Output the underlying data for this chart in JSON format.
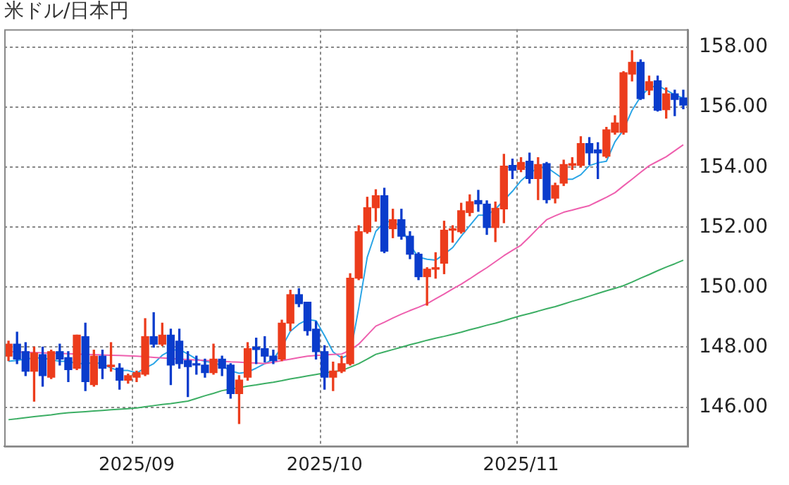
{
  "chart_data": {
    "type": "candlestick",
    "title": "米ドル/日本円",
    "categories": [
      null,
      null,
      null,
      null,
      null,
      null,
      null,
      null,
      null,
      null,
      null,
      null,
      null,
      null,
      null,
      "2025/09",
      null,
      null,
      null,
      null,
      null,
      null,
      null,
      null,
      null,
      null,
      null,
      null,
      null,
      null,
      null,
      null,
      null,
      null,
      null,
      null,
      null,
      "2025/10",
      null,
      null,
      null,
      null,
      null,
      null,
      null,
      null,
      null,
      null,
      null,
      null,
      null,
      null,
      null,
      null,
      null,
      null,
      null,
      null,
      null,
      null,
      "2025/11",
      null,
      null,
      null,
      null,
      null,
      null,
      null,
      null,
      null,
      null,
      null,
      null,
      null,
      null,
      null,
      null,
      null,
      null,
      null
    ],
    "series": [
      {
        "type": "line",
        "color": "#3cae64",
        "values": [
          145.58,
          145.61,
          145.65,
          145.68,
          145.71,
          145.74,
          145.78,
          145.81,
          145.83,
          145.85,
          145.87,
          145.89,
          145.91,
          145.93,
          145.95,
          145.97,
          146.01,
          146.05,
          146.09,
          146.12,
          146.16,
          146.2,
          146.29,
          146.38,
          146.46,
          146.55,
          146.6,
          146.65,
          146.7,
          146.74,
          146.79,
          146.83,
          146.88,
          146.94,
          146.99,
          147.04,
          147.09,
          147.14,
          147.18,
          147.22,
          147.33,
          147.45,
          147.6,
          147.76,
          147.84,
          147.92,
          148.0,
          148.08,
          148.15,
          148.23,
          148.3,
          148.36,
          148.43,
          148.5,
          148.58,
          148.65,
          148.73,
          148.8,
          148.88,
          148.97,
          149.05,
          149.12,
          149.2,
          149.28,
          149.35,
          149.44,
          149.53,
          149.61,
          149.7,
          149.79,
          149.88,
          149.96,
          150.05,
          150.17,
          150.3,
          150.42,
          150.55,
          150.67,
          150.78,
          150.9
        ]
      },
      {
        "type": "line",
        "color": "#ee5fae",
        "values": [
          147.85,
          147.84,
          147.83,
          147.82,
          147.81,
          147.8,
          147.79,
          147.78,
          147.77,
          147.76,
          147.75,
          147.74,
          147.73,
          147.72,
          147.71,
          147.7,
          147.68,
          147.66,
          147.64,
          147.62,
          147.6,
          147.59,
          147.57,
          147.56,
          147.54,
          147.53,
          147.51,
          147.5,
          147.48,
          147.47,
          147.45,
          147.5,
          147.55,
          147.6,
          147.65,
          147.7,
          147.72,
          147.74,
          147.76,
          147.77,
          147.9,
          148.1,
          148.4,
          148.7,
          148.83,
          148.97,
          149.1,
          149.22,
          149.33,
          149.45,
          149.61,
          149.77,
          149.94,
          150.1,
          150.28,
          150.47,
          150.65,
          150.85,
          151.05,
          151.23,
          151.4,
          151.68,
          151.97,
          152.25,
          152.38,
          152.5,
          152.57,
          152.65,
          152.72,
          152.86,
          153.0,
          153.15,
          153.38,
          153.6,
          153.83,
          154.05,
          154.2,
          154.35,
          154.55,
          154.75
        ]
      },
      {
        "type": "line",
        "color": "#2aa5e6",
        "values": [
          147.53,
          147.56,
          147.6,
          147.64,
          147.64,
          147.58,
          147.53,
          147.53,
          147.45,
          147.45,
          147.48,
          147.45,
          147.3,
          147.22,
          147.22,
          147.14,
          147.3,
          147.45,
          147.73,
          147.89,
          147.92,
          147.77,
          147.6,
          147.53,
          147.48,
          147.38,
          147.21,
          147.13,
          147.17,
          147.3,
          147.45,
          147.6,
          147.99,
          148.53,
          148.77,
          148.92,
          148.88,
          148.38,
          147.84,
          147.64,
          147.76,
          149.3,
          151.0,
          151.86,
          152.17,
          152.2,
          152.0,
          151.4,
          151.0,
          150.93,
          150.9,
          151.1,
          151.32,
          151.7,
          152.05,
          152.4,
          152.4,
          152.6,
          152.9,
          153.2,
          153.55,
          153.8,
          153.98,
          154.0,
          153.8,
          153.6,
          153.6,
          153.75,
          154.05,
          154.15,
          154.2,
          154.85,
          155.25,
          155.9,
          156.35,
          156.65,
          156.73,
          156.57,
          156.42,
          156.3
        ]
      },
      {
        "type": "candlestick",
        "colors": [
          "#ec3c1c",
          "#0a3ccc",
          "#0a3ccc",
          "#ec3c1c",
          "#0a3ccc",
          "#ec3c1c",
          "#0a3ccc",
          "#0a3ccc",
          "#ec3c1c",
          "#0a3ccc",
          "#ec3c1c",
          "#0a3ccc",
          "#ec3c1c",
          "#0a3ccc",
          "#ec3c1c",
          "#ec3c1c",
          "#ec3c1c",
          "#0a3ccc",
          "#ec3c1c",
          "#0a3ccc",
          "#0a3ccc",
          "#0a3ccc",
          "#0a3ccc",
          "#0a3ccc",
          "#ec3c1c",
          "#0a3ccc",
          "#0a3ccc",
          "#ec3c1c",
          "#ec3c1c",
          "#0a3ccc",
          "#0a3ccc",
          "#0a3ccc",
          "#ec3c1c",
          "#ec3c1c",
          "#0a3ccc",
          "#0a3ccc",
          "#0a3ccc",
          "#0a3ccc",
          "#ec3c1c",
          "#ec3c1c",
          "#ec3c1c",
          "#ec3c1c",
          "#ec3c1c",
          "#ec3c1c",
          "#0a3ccc",
          "#ec3c1c",
          "#0a3ccc",
          "#0a3ccc",
          "#0a3ccc",
          "#ec3c1c",
          "#ec3c1c",
          "#ec3c1c",
          "#ec3c1c",
          "#ec3c1c",
          "#ec3c1c",
          "#0a3ccc",
          "#0a3ccc",
          "#ec3c1c",
          "#ec3c1c",
          "#0a3ccc",
          "#ec3c1c",
          "#0a3ccc",
          "#ec3c1c",
          "#0a3ccc",
          "#ec3c1c",
          "#ec3c1c",
          "#ec3c1c",
          "#ec3c1c",
          "#0a3ccc",
          "#0a3ccc",
          "#ec3c1c",
          "#ec3c1c",
          "#ec3c1c",
          "#ec3c1c",
          "#0a3ccc",
          "#ec3c1c",
          "#0a3ccc",
          "#ec3c1c",
          "#0a3ccc",
          "#0a3ccc"
        ],
        "ohlc": [
          [
            147.7,
            148.2,
            147.55,
            148.1
          ],
          [
            148.1,
            148.5,
            147.45,
            147.6
          ],
          [
            147.85,
            148.15,
            147.05,
            147.2
          ],
          [
            147.2,
            148.0,
            146.2,
            147.8
          ],
          [
            147.75,
            148.0,
            146.7,
            147.05
          ],
          [
            147.0,
            147.9,
            146.95,
            147.85
          ],
          [
            147.85,
            148.1,
            147.4,
            147.6
          ],
          [
            147.65,
            147.85,
            146.85,
            147.25
          ],
          [
            147.3,
            148.4,
            147.25,
            148.4
          ],
          [
            148.35,
            148.8,
            146.55,
            146.85
          ],
          [
            146.75,
            147.9,
            146.7,
            147.7
          ],
          [
            147.7,
            147.9,
            146.95,
            147.3
          ],
          [
            147.35,
            148.15,
            147.2,
            147.4
          ],
          [
            147.3,
            147.45,
            146.6,
            146.9
          ],
          [
            146.9,
            147.1,
            146.8,
            147.05
          ],
          [
            147.0,
            147.2,
            146.85,
            147.15
          ],
          [
            147.1,
            148.95,
            147.05,
            148.35
          ],
          [
            148.35,
            149.15,
            148.0,
            148.1
          ],
          [
            148.1,
            148.8,
            148.05,
            148.4
          ],
          [
            148.4,
            148.6,
            146.75,
            147.4
          ],
          [
            148.2,
            148.6,
            147.3,
            147.45
          ],
          [
            147.55,
            147.85,
            146.35,
            147.35
          ],
          [
            147.45,
            147.7,
            147.1,
            147.4
          ],
          [
            147.4,
            147.6,
            147.0,
            147.15
          ],
          [
            147.15,
            148.1,
            147.1,
            147.6
          ],
          [
            147.6,
            147.7,
            147.05,
            147.3
          ],
          [
            147.4,
            147.45,
            146.3,
            146.45
          ],
          [
            146.45,
            147.05,
            145.45,
            146.9
          ],
          [
            147.0,
            148.15,
            146.9,
            147.95
          ],
          [
            148.0,
            148.3,
            147.45,
            147.92
          ],
          [
            147.95,
            148.35,
            147.5,
            147.7
          ],
          [
            147.7,
            147.9,
            147.45,
            147.55
          ],
          [
            147.6,
            148.9,
            147.55,
            148.8
          ],
          [
            148.8,
            149.9,
            148.55,
            149.75
          ],
          [
            149.75,
            149.95,
            149.35,
            149.45
          ],
          [
            149.5,
            149.5,
            148.4,
            148.55
          ],
          [
            148.6,
            148.85,
            147.6,
            147.85
          ],
          [
            147.85,
            148.05,
            146.6,
            147.0
          ],
          [
            147.0,
            147.5,
            146.55,
            147.2
          ],
          [
            147.2,
            147.7,
            147.15,
            147.45
          ],
          [
            147.45,
            150.45,
            147.4,
            150.3
          ],
          [
            150.3,
            152.05,
            150.25,
            151.85
          ],
          [
            151.85,
            153.0,
            151.8,
            152.65
          ],
          [
            152.65,
            153.25,
            152.2,
            153.05
          ],
          [
            153.05,
            153.3,
            151.15,
            151.2
          ],
          [
            151.95,
            152.6,
            151.65,
            152.25
          ],
          [
            152.25,
            152.6,
            151.6,
            151.7
          ],
          [
            151.7,
            151.85,
            150.95,
            151.1
          ],
          [
            151.1,
            151.15,
            150.25,
            150.35
          ],
          [
            150.35,
            150.65,
            149.4,
            150.6
          ],
          [
            150.6,
            151.15,
            150.3,
            150.65
          ],
          [
            150.8,
            152.2,
            150.45,
            151.9
          ],
          [
            151.9,
            152.05,
            151.5,
            151.95
          ],
          [
            151.85,
            152.8,
            151.8,
            152.55
          ],
          [
            152.49,
            153.08,
            152.38,
            152.85
          ],
          [
            152.89,
            153.23,
            152.53,
            152.78
          ],
          [
            152.77,
            152.88,
            151.76,
            151.99
          ],
          [
            151.99,
            152.84,
            151.52,
            152.63
          ],
          [
            152.61,
            154.43,
            152.15,
            154.04
          ],
          [
            154.06,
            154.27,
            153.62,
            153.9
          ],
          [
            153.93,
            154.32,
            153.85,
            154.16
          ],
          [
            154.2,
            154.47,
            153.47,
            153.62
          ],
          [
            153.62,
            154.32,
            152.92,
            154.09
          ],
          [
            154.12,
            154.16,
            152.81,
            152.92
          ],
          [
            152.97,
            153.47,
            152.81,
            153.39
          ],
          [
            153.47,
            154.24,
            153.39,
            154.09
          ],
          [
            154.06,
            154.32,
            153.93,
            154.12
          ],
          [
            154.06,
            155.02,
            154.01,
            154.79
          ],
          [
            154.79,
            154.99,
            154.09,
            154.48
          ],
          [
            154.58,
            154.82,
            153.62,
            154.48
          ],
          [
            154.37,
            155.33,
            154.32,
            155.25
          ],
          [
            155.17,
            155.72,
            155.1,
            155.48
          ],
          [
            155.17,
            157.19,
            155.1,
            157.15
          ],
          [
            157.11,
            157.89,
            156.88,
            157.5
          ],
          [
            157.5,
            157.58,
            156.26,
            156.29
          ],
          [
            156.57,
            157.04,
            156.42,
            156.85
          ],
          [
            156.88,
            157.04,
            155.87,
            155.9
          ],
          [
            155.92,
            156.65,
            155.64,
            156.45
          ],
          [
            156.45,
            156.57,
            155.72,
            156.26
          ],
          [
            156.31,
            156.57,
            155.95,
            156.07
          ]
        ]
      }
    ],
    "ylim": [
      144.7,
      158.6
    ],
    "yticks": [
      {
        "value": 146,
        "label": "146.00"
      },
      {
        "value": 148,
        "label": "148.00"
      },
      {
        "value": 150,
        "label": "150.00"
      },
      {
        "value": 152,
        "label": "152.00"
      },
      {
        "value": 154,
        "label": "154.00"
      },
      {
        "value": 156,
        "label": "156.00"
      },
      {
        "value": 158,
        "label": "158.00"
      }
    ],
    "grid": true,
    "legend": false,
    "marker": "none"
  }
}
